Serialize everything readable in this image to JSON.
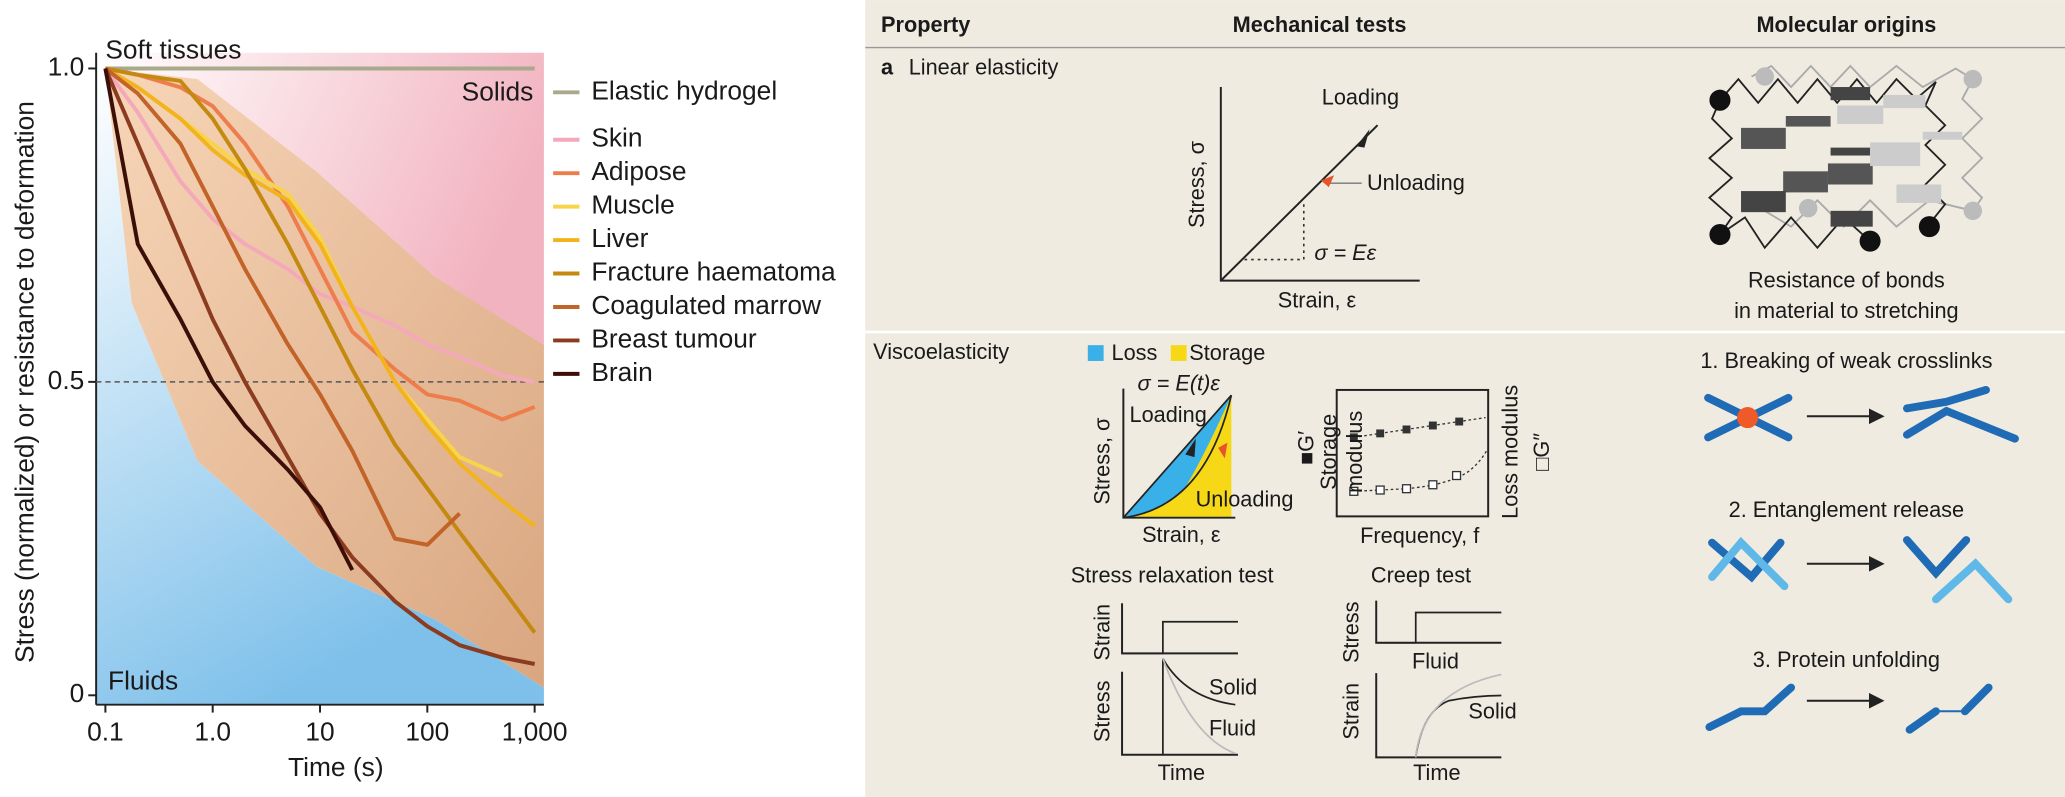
{
  "chart_data": {
    "type": "line",
    "xscale": "log",
    "xlabel": "Time (s)",
    "ylabel": "Stress (normalized) or resistance to deformation",
    "annotations": [
      "Soft tissues",
      "Solids",
      "Fluids"
    ],
    "x": [
      0.1,
      0.2,
      0.5,
      1,
      2,
      5,
      10,
      20,
      50,
      100,
      200,
      500,
      1000
    ],
    "xlim": [
      0.082,
      1220
    ],
    "xticks": [
      0.1,
      {
        "value": 1,
        "label": "1.0"
      },
      10,
      100,
      {
        "value": 1000,
        "label": "1,000"
      }
    ],
    "ylim": [
      -0.015,
      1.025
    ],
    "yticks": [
      0,
      0.5,
      {
        "value": 1,
        "label": "1.0"
      }
    ],
    "hline": 0.5,
    "legend": "right",
    "series": [
      {
        "name": "Elastic hydrogel",
        "color": "#a9aa8c",
        "values": [
          1,
          1,
          1,
          1,
          1,
          1,
          1,
          1,
          1,
          1,
          1,
          1,
          1
        ]
      },
      {
        "name": "Skin",
        "color": "#f4a9bb",
        "values": [
          1,
          0.93,
          0.82,
          0.76,
          0.72,
          0.68,
          0.64,
          0.62,
          0.59,
          0.56,
          0.54,
          0.51,
          0.5
        ]
      },
      {
        "name": "Adipose",
        "color": "#ee7d4c",
        "values": [
          1,
          0.99,
          0.97,
          0.94,
          0.88,
          0.78,
          0.68,
          0.58,
          0.52,
          0.48,
          0.47,
          0.44,
          0.46
        ]
      },
      {
        "name": "Muscle",
        "color": "#f8d44a",
        "values": [
          1,
          0.97,
          0.92,
          0.88,
          0.84,
          0.8,
          0.73,
          0.62,
          0.5,
          0.44,
          0.38,
          0.35,
          null
        ]
      },
      {
        "name": "Liver",
        "color": "#f2b41d",
        "values": [
          1,
          0.97,
          0.92,
          0.87,
          0.83,
          0.79,
          0.72,
          0.62,
          0.5,
          0.43,
          0.37,
          0.31,
          0.27
        ]
      },
      {
        "name": "Fracture haematoma",
        "color": "#c48a10",
        "values": [
          1,
          0.99,
          0.98,
          0.92,
          0.84,
          0.72,
          0.62,
          0.52,
          0.4,
          0.33,
          0.26,
          0.17,
          0.1
        ]
      },
      {
        "name": "Coagulated marrow",
        "color": "#c2642a",
        "values": [
          1,
          0.96,
          0.88,
          0.78,
          0.68,
          0.56,
          0.48,
          0.39,
          0.25,
          0.24,
          0.29,
          null,
          null
        ]
      },
      {
        "name": "Breast tumour",
        "color": "#8b3b1f",
        "values": [
          1,
          0.88,
          0.72,
          0.6,
          0.5,
          0.38,
          0.29,
          0.22,
          0.15,
          0.11,
          0.08,
          0.06,
          0.05
        ]
      },
      {
        "name": "Brain",
        "color": "#3b0f08",
        "values": [
          1,
          0.72,
          0.6,
          0.5,
          0.43,
          0.36,
          0.3,
          0.2,
          null,
          null,
          null,
          null,
          null
        ]
      }
    ]
  },
  "panel": {
    "header": {
      "property": "Property",
      "mechanical_tests": "Mechanical tests",
      "molecular_origins": "Molecular origins"
    },
    "linear_elasticity": {
      "letter": "a",
      "label": "Linear elasticity",
      "loading": "Loading",
      "unloading": "Unloading",
      "y_axis": "Stress, σ",
      "x_axis": "Strain, ε",
      "equation": "σ = Eε",
      "origin": [
        "Resistance of bonds",
        "in material to stretching"
      ]
    },
    "viscoelasticity": {
      "label": "Viscoelasticity",
      "legend": [
        "Loss",
        "Storage"
      ],
      "equation": "σ = E(t)ε",
      "loading": "Loading",
      "unloading": "Unloading",
      "y_axis": "Stress, σ",
      "x_axis": "Strain, ε",
      "storage_symbol": "■G′",
      "storage_axis": [
        "Storage",
        "modulus"
      ],
      "frequency_axis": "Frequency, f",
      "loss_axis": "Loss modulus",
      "loss_symbol": "□G″",
      "relaxation": {
        "title": "Stress relaxation test",
        "top_axis": "Strain",
        "bottom_axis": "Stress",
        "solid": "Solid",
        "fluid": "Fluid",
        "time": "Time"
      },
      "creep": {
        "title": "Creep test",
        "top_axis": "Stress",
        "top_fluid": "Fluid",
        "bottom_axis": "Strain",
        "solid": "Solid",
        "time": "Time"
      },
      "origins": [
        "1. Breaking of weak crosslinks",
        "2. Entanglement release",
        "3. Protein unfolding"
      ]
    }
  }
}
